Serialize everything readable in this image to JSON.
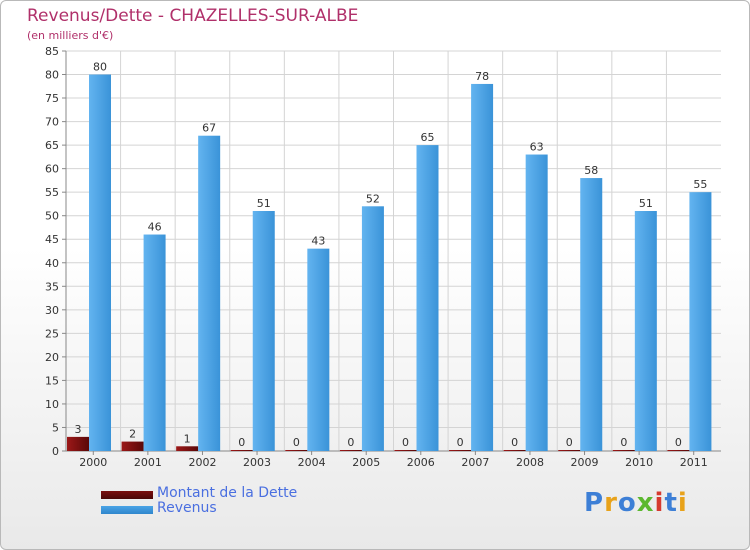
{
  "header": {
    "title": "Revenus/Dette - CHAZELLES-SUR-ALBE",
    "subtitle": "(en milliers d'€)"
  },
  "colors": {
    "title": "#b0306a",
    "debt": "#7a0d0d",
    "revenue": "#4aa3e6",
    "legend_text": "#4a6fe0",
    "grid": "#d4d4d4"
  },
  "legend": {
    "items": [
      {
        "label": "Montant de la Dette",
        "color": "#7a0d0d"
      },
      {
        "label": "Revenus",
        "color": "#4aa3e6"
      }
    ]
  },
  "logo": {
    "text": "Proxiti",
    "letters": [
      "P",
      "r",
      "o",
      "x",
      "i",
      "t",
      "i"
    ],
    "colors": [
      "#3d7fd6",
      "#e8a21a",
      "#3d7fd6",
      "#5cb82f",
      "#d63a2f",
      "#3d7fd6",
      "#e8a21a"
    ]
  },
  "chart_data": {
    "type": "bar",
    "categories": [
      "2000",
      "2001",
      "2002",
      "2003",
      "2004",
      "2005",
      "2006",
      "2007",
      "2008",
      "2009",
      "2010",
      "2011"
    ],
    "series": [
      {
        "name": "Montant de la Dette",
        "values": [
          3,
          2,
          1,
          0,
          0,
          0,
          0,
          0,
          0,
          0,
          0,
          0
        ]
      },
      {
        "name": "Revenus",
        "values": [
          80,
          46,
          67,
          51,
          43,
          52,
          65,
          78,
          63,
          58,
          51,
          55
        ]
      }
    ],
    "ylim": [
      0,
      85
    ],
    "ytick_step": 5,
    "yticks": [
      "0",
      "5",
      "10",
      "15",
      "20",
      "25",
      "30",
      "35",
      "40",
      "45",
      "50",
      "55",
      "60",
      "65",
      "70",
      "75",
      "80",
      "85"
    ],
    "grid": true,
    "data_labels": true
  }
}
